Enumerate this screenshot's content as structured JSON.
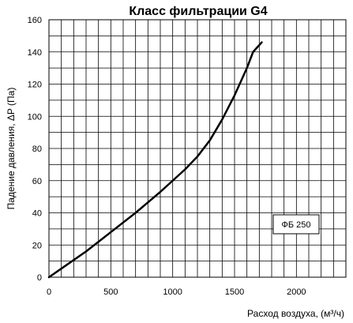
{
  "chart_data": {
    "type": "line",
    "title": "Класс фильтрации G4",
    "xlabel": "Расход воздуха, (м³/ч)",
    "ylabel": "Падение давления, ΔP (Па)",
    "xlim": [
      0,
      2400
    ],
    "ylim": [
      0,
      160
    ],
    "xticks": [
      0,
      500,
      1000,
      1500,
      2000
    ],
    "yticks": [
      0,
      20,
      40,
      60,
      80,
      100,
      120,
      140,
      160
    ],
    "grid": true,
    "legend_position": "bottom-right",
    "series": [
      {
        "name": "ФБ 250",
        "color": "#000000",
        "x": [
          0,
          150,
          300,
          500,
          700,
          900,
          1100,
          1200,
          1300,
          1400,
          1500,
          1600,
          1650,
          1720
        ],
        "y": [
          0,
          8,
          16,
          28,
          40,
          53,
          67,
          75,
          85,
          98,
          113,
          130,
          140,
          146
        ]
      }
    ]
  }
}
